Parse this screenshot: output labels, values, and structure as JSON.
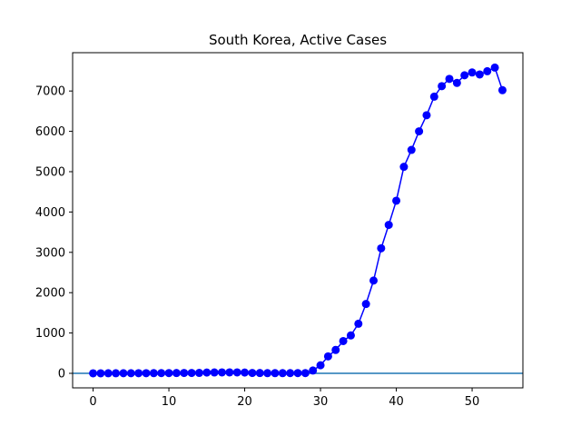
{
  "chart_data": {
    "type": "line",
    "title": "South Korea, Active Cases",
    "xlabel": "",
    "ylabel": "",
    "xlim": [
      -2.7,
      56.7
    ],
    "ylim": [
      -360,
      7950
    ],
    "x_ticks": [
      0,
      10,
      20,
      30,
      40,
      50
    ],
    "y_ticks": [
      0,
      1000,
      2000,
      3000,
      4000,
      5000,
      6000,
      7000
    ],
    "grid": false,
    "legend": "none",
    "reference_line": {
      "y": 0,
      "color": "#1f77b4"
    },
    "series": [
      {
        "color": "#0000ff",
        "marker": "circle",
        "x": [
          0,
          1,
          2,
          3,
          4,
          5,
          6,
          7,
          8,
          9,
          10,
          11,
          12,
          13,
          14,
          15,
          16,
          17,
          18,
          19,
          20,
          21,
          22,
          23,
          24,
          25,
          26,
          27,
          28,
          29,
          30,
          31,
          32,
          33,
          34,
          35,
          36,
          37,
          38,
          39,
          40,
          41,
          42,
          43,
          44,
          45,
          46,
          47,
          48,
          49,
          50,
          51,
          52,
          53,
          54
        ],
        "values": [
          1,
          1,
          2,
          2,
          3,
          3,
          4,
          4,
          5,
          6,
          7,
          8,
          9,
          10,
          11,
          20,
          22,
          23,
          24,
          24,
          20,
          10,
          8,
          5,
          5,
          5,
          6,
          7,
          7,
          70,
          200,
          420,
          580,
          800,
          940,
          1230,
          1720,
          2300,
          3100,
          3680,
          4280,
          5120,
          5540,
          6000,
          6400,
          6860,
          7120,
          7300,
          7200,
          7390,
          7460,
          7410,
          7490,
          7580,
          7020
        ]
      }
    ]
  }
}
